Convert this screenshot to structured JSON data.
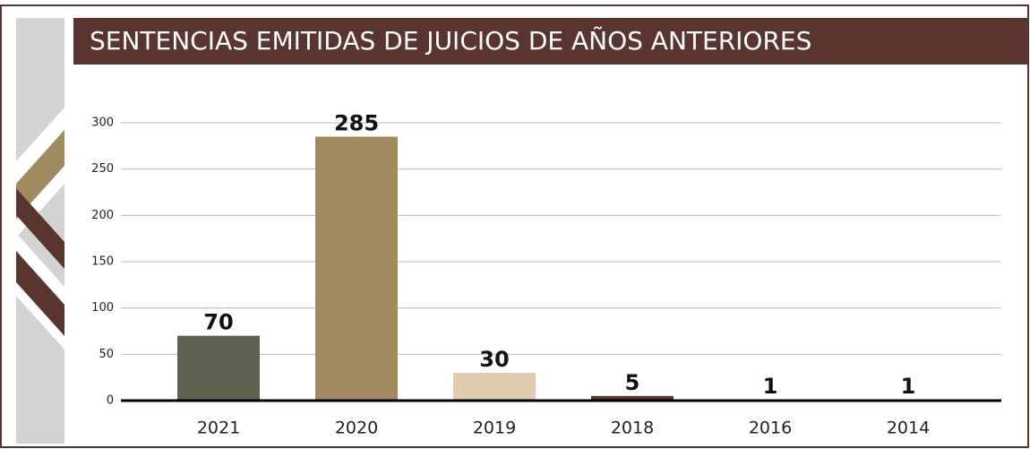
{
  "chart_data": {
    "type": "bar",
    "title": "SENTENCIAS EMITIDAS DE JUICIOS DE AÑOS ANTERIORES",
    "categories": [
      "2021",
      "2020",
      "2019",
      "2018",
      "2016",
      "2014"
    ],
    "values": [
      70,
      285,
      30,
      5,
      1,
      1
    ],
    "colors": [
      "#5e6150",
      "#a08a60",
      "#e0cdb0",
      "#5a3530",
      "#5a3530",
      "#5a3530"
    ],
    "ylim": [
      0,
      300
    ],
    "yticks": [
      0,
      50,
      100,
      150,
      200,
      250,
      300
    ],
    "grid": true
  }
}
